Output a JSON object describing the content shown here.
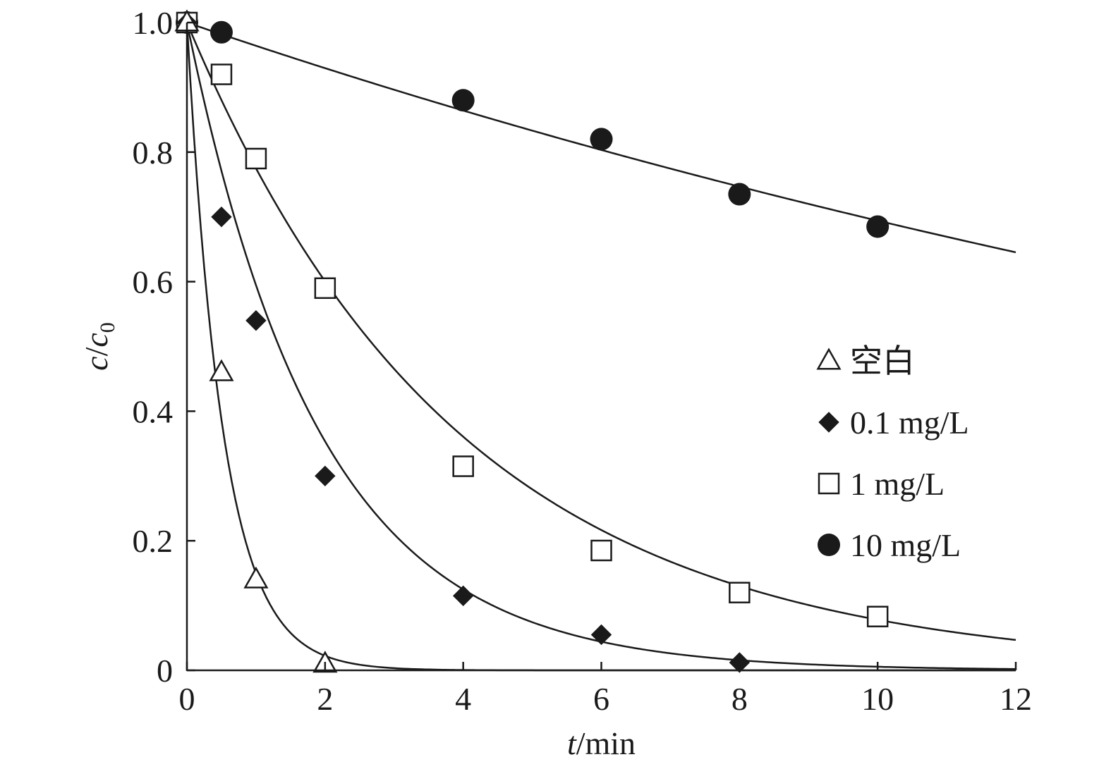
{
  "chart_data": {
    "type": "scatter",
    "title": "",
    "xlabel": {
      "var": "t",
      "unit": "/min"
    },
    "ylabel": {
      "var": "c",
      "sep": "/",
      "var2": "c",
      "sub": "0"
    },
    "xlim": [
      0,
      12
    ],
    "ylim": [
      0,
      1.0
    ],
    "x_ticks": [
      0,
      2,
      4,
      6,
      8,
      10,
      12
    ],
    "x_tick_labels": [
      "0",
      "2",
      "4",
      "6",
      "8",
      "10",
      "12"
    ],
    "y_ticks": [
      0,
      0.2,
      0.4,
      0.6,
      0.8,
      1.0
    ],
    "y_tick_labels": [
      "0",
      "0.2",
      "0.4",
      "0.6",
      "0.8",
      "1.0"
    ],
    "grid": false,
    "legend_position": "right-middle",
    "colors": {
      "ink": "#1a1a1a",
      "hollow": "#ffffff"
    },
    "series": [
      {
        "name": "空白",
        "marker": "triangle-open",
        "x": [
          0,
          0.5,
          1,
          2
        ],
        "y": [
          1.0,
          0.46,
          0.14,
          0.01
        ],
        "fit_rate": 1.9
      },
      {
        "name": "0.1 mg/L",
        "marker": "diamond-filled",
        "x": [
          0,
          0.5,
          1,
          2,
          4,
          6,
          8
        ],
        "y": [
          1.0,
          0.7,
          0.54,
          0.3,
          0.115,
          0.055,
          0.012
        ],
        "fit_rate": 0.52
      },
      {
        "name": "1 mg/L",
        "marker": "square-open",
        "x": [
          0,
          0.5,
          1,
          2,
          4,
          6,
          8,
          10
        ],
        "y": [
          1.0,
          0.92,
          0.79,
          0.59,
          0.315,
          0.185,
          0.12,
          0.083
        ],
        "fit_rate": 0.255
      },
      {
        "name": "10 mg/L",
        "marker": "circle-filled",
        "x": [
          0,
          0.5,
          4,
          6,
          8,
          10
        ],
        "y": [
          1.0,
          0.985,
          0.88,
          0.82,
          0.735,
          0.685
        ],
        "fit_rate": 0.0365
      }
    ]
  }
}
